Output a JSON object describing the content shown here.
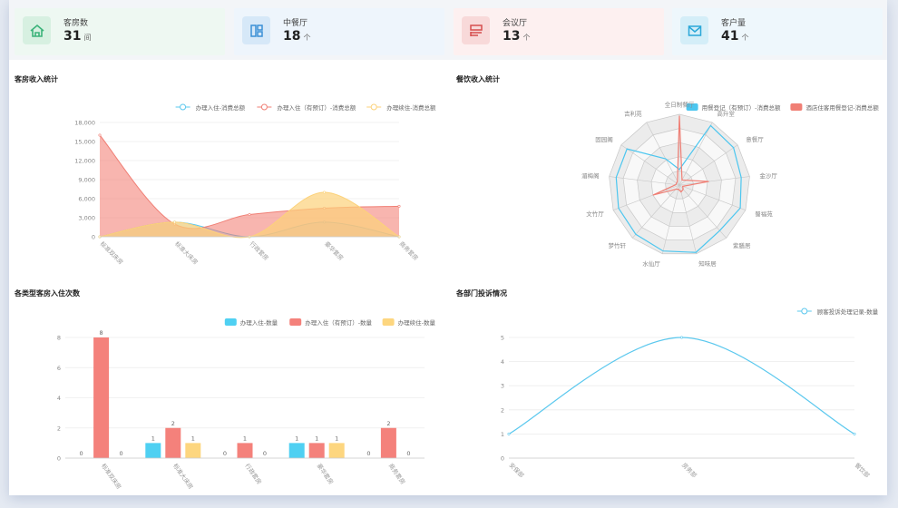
{
  "stats": [
    {
      "label": "客房数",
      "value": "31",
      "unit": "间",
      "icon": "house-icon",
      "color": "#3bb37a",
      "bg": "#eef8f2",
      "ibg": "#d7f0e1"
    },
    {
      "label": "中餐厅",
      "value": "18",
      "unit": "个",
      "icon": "layout-icon",
      "color": "#3a8fd6",
      "bg": "#eef5fc",
      "ibg": "#d6e8f8"
    },
    {
      "label": "会议厅",
      "value": "13",
      "unit": "个",
      "icon": "form-icon",
      "color": "#d64d4d",
      "bg": "#fdf0f0",
      "ibg": "#f8d9d9"
    },
    {
      "label": "客户量",
      "value": "41",
      "unit": "个",
      "icon": "mail-icon",
      "color": "#2aa7d8",
      "bg": "#eef7fc",
      "ibg": "#d4eef8"
    }
  ],
  "panels": {
    "room_income": "客房收入统计",
    "dining_income": "餐饮收入统计",
    "room_count": "各类型客房入住次数",
    "complaints": "各部门投诉情况"
  },
  "chart_data": [
    {
      "type": "area",
      "title": "客房收入统计",
      "categories": [
        "标准双床房",
        "标准大床房",
        "行政套房",
        "豪华套房",
        "商务套房"
      ],
      "ylim": [
        0,
        18000
      ],
      "yticks": [
        "0",
        "3,000",
        "6,000",
        "9,000",
        "12,000",
        "15,000",
        "18,000"
      ],
      "series": [
        {
          "name": "办理入住-消费总额",
          "color": "#5bc8ee",
          "fill": "rgba(91,200,238,0.25)",
          "values": [
            0,
            2300,
            0,
            2300,
            0
          ]
        },
        {
          "name": "办理入住（有预订）-消费总额",
          "color": "#f07f75",
          "fill": "rgba(242,120,110,0.55)",
          "values": [
            16000,
            2000,
            3500,
            4500,
            4800
          ]
        },
        {
          "name": "办理续住-消费总额",
          "color": "#fcd27a",
          "fill": "rgba(252,210,122,0.7)",
          "values": [
            0,
            2300,
            0,
            7000,
            0
          ]
        }
      ]
    },
    {
      "type": "radar",
      "title": "餐饮收入统计",
      "indicators": [
        "全日制餐厅",
        "高升堂",
        "意餐厅",
        "金沙厅",
        "蜀福苑",
        "紫膳居",
        "知味居",
        "水仙厅",
        "梦竹轩",
        "文竹厅",
        "湄梅阁",
        "固园阁",
        "吉利苑"
      ],
      "series": [
        {
          "name": "用餐登记（有预订）-消费总额",
          "color": "#4cc6ef",
          "values": [
            0.22,
            0.95,
            0.93,
            0.88,
            0.92,
            0.86,
            0.98,
            0.96,
            0.93,
            0.92,
            0.9,
            0.9,
            0.42
          ]
        },
        {
          "name": "酒店住客用餐登记-消费总额",
          "color": "#f07f75",
          "values": [
            0.98,
            0.08,
            0.12,
            0.42,
            0.05,
            0.08,
            0.1,
            0.06,
            0.08,
            0.4,
            0.05,
            0.05,
            0.06
          ]
        }
      ]
    },
    {
      "type": "bar",
      "title": "各类型客房入住次数",
      "categories": [
        "标准双床房",
        "标准大床房",
        "行政套房",
        "豪华套房",
        "商务套房"
      ],
      "ylim": [
        0,
        8
      ],
      "yticks": [
        "0",
        "2",
        "4",
        "6",
        "8"
      ],
      "series": [
        {
          "name": "办理入住-数量",
          "color": "#4fd0f2",
          "values": [
            0,
            1,
            0,
            1,
            0
          ]
        },
        {
          "name": "办理入住（有预订）-数量",
          "color": "#f4817b",
          "values": [
            8,
            2,
            1,
            1,
            2
          ]
        },
        {
          "name": "办理续住-数量",
          "color": "#fdd67f",
          "values": [
            0,
            1,
            0,
            1,
            0
          ]
        }
      ]
    },
    {
      "type": "line",
      "title": "各部门投诉情况",
      "categories": [
        "安保部",
        "房务部",
        "餐饮部"
      ],
      "ylim": [
        0,
        5
      ],
      "yticks": [
        "0",
        "1",
        "2",
        "3",
        "4",
        "5"
      ],
      "series": [
        {
          "name": "顾客投诉处理记录-数量",
          "color": "#5bc8ee",
          "values": [
            1,
            5,
            1
          ]
        }
      ]
    }
  ]
}
